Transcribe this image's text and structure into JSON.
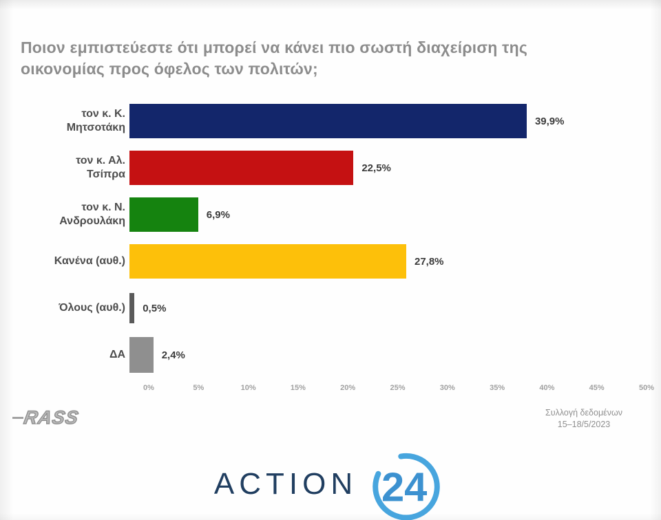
{
  "title": {
    "text": "Ποιον εμπιστεύεστε ότι μπορεί να κάνει πιο σωστή διαχείριση της οικονομίας προς όφελος των πολιτών;"
  },
  "chart_data": {
    "type": "bar",
    "orientation": "horizontal",
    "title": "Ποιον εμπιστεύεστε ότι μπορεί να κάνει πιο σωστή διαχείριση της οικονομίας προς όφελος των πολιτών;",
    "categories": [
      "τον κ. Κ. Μητσοτάκη",
      "τον κ. Αλ. Τσίπρα",
      "τον κ. Ν. Ανδρουλάκη",
      "Κανένα (αυθ.)",
      "Όλους (αυθ.)",
      "ΔΑ"
    ],
    "values": [
      39.9,
      22.5,
      6.9,
      27.8,
      0.5,
      2.4
    ],
    "value_labels": [
      "39,9%",
      "22,5%",
      "6,9%",
      "27,8%",
      "0,5%",
      "2,4%"
    ],
    "bar_colors": [
      "#13266b",
      "#c51112",
      "#15830f",
      "#fdc00a",
      "#5a5a5a",
      "#8f8f8f"
    ],
    "xlim": [
      0,
      50
    ],
    "x_ticks": [
      "0%",
      "5%",
      "10%",
      "15%",
      "20%",
      "25%",
      "30%",
      "35%",
      "40%",
      "45%",
      "50%"
    ],
    "grid": false,
    "legend": false
  },
  "footer": {
    "source": "RASS",
    "note_line1": "Συλλογή δεδομένων",
    "note_line2": "15–18/5/2023"
  },
  "branding": {
    "word": "ACTION",
    "number": "24",
    "word_color": "#203e60",
    "number_color": "#3c91d0",
    "arc_color": "#47a5de"
  }
}
